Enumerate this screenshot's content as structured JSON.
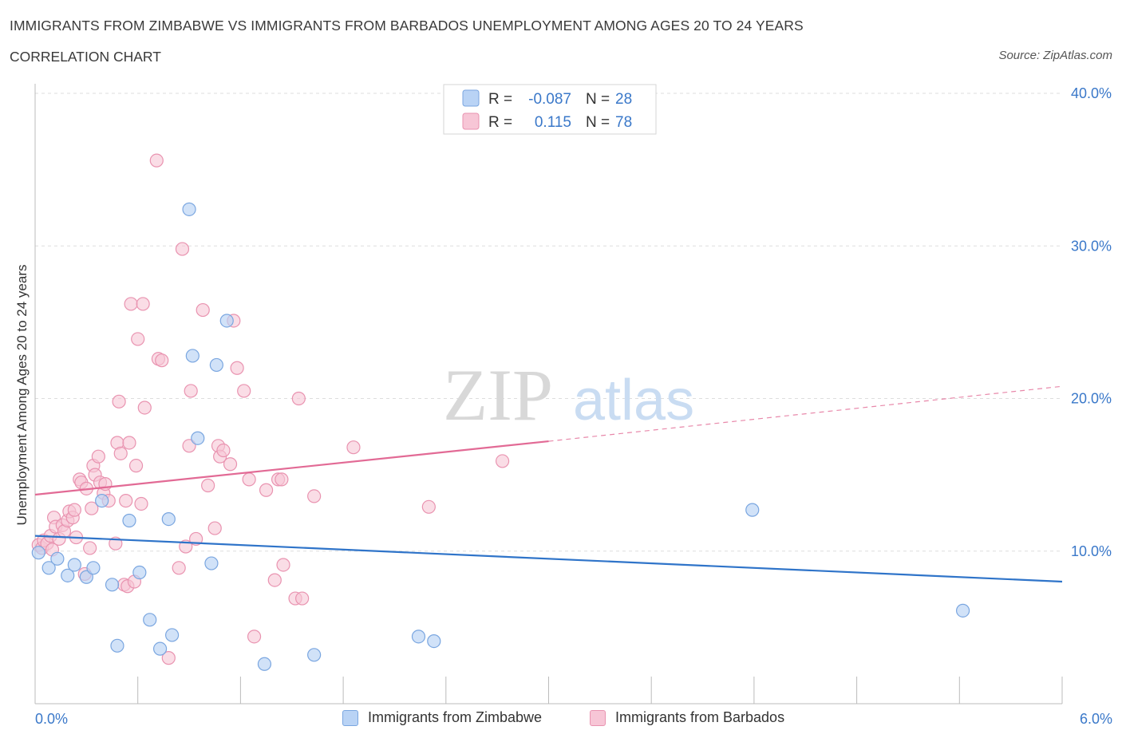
{
  "header": {
    "title": "IMMIGRANTS FROM ZIMBABWE VS IMMIGRANTS FROM BARBADOS UNEMPLOYMENT AMONG AGES 20 TO 24 YEARS",
    "subtitle": "CORRELATION CHART",
    "source": "Source: ZipAtlas.com"
  },
  "watermark": {
    "zip": "ZIP",
    "atlas": "atlas"
  },
  "stats": {
    "zimbabwe": {
      "r_label": "R =",
      "r_value": "-0.087",
      "n_label": "N =",
      "n_value": "28"
    },
    "barbados": {
      "r_label": "R =",
      "r_value": "0.115",
      "n_label": "N =",
      "n_value": "78"
    }
  },
  "colors": {
    "zimbabwe_fill": "#b9d3f5",
    "zimbabwe_stroke": "#7aa6e0",
    "zimbabwe_line": "#2f74c9",
    "barbados_fill": "#f7c6d6",
    "barbados_stroke": "#e993b0",
    "barbados_line": "#e26a95",
    "value_text": "#3a78c9"
  },
  "chart_data": {
    "type": "scatter",
    "xlabel": "",
    "ylabel": "Unemployment Among Ages 20 to 24 years",
    "xlim": [
      0,
      6
    ],
    "ylim": [
      0,
      40
    ],
    "x_tick_labels": [
      "0.0%",
      "6.0%"
    ],
    "y_tick_labels": [
      "10.0%",
      "20.0%",
      "30.0%",
      "40.0%"
    ],
    "y_ticks": [
      10,
      20,
      30,
      40
    ],
    "grid": true,
    "legend_position": "top-center",
    "series": [
      {
        "name": "Immigrants from Zimbabwe",
        "trend": {
          "x": [
            0,
            6
          ],
          "y": [
            11.0,
            8.0
          ]
        },
        "points": [
          [
            0.02,
            9.9
          ],
          [
            0.08,
            8.9
          ],
          [
            0.13,
            9.5
          ],
          [
            0.19,
            8.4
          ],
          [
            0.23,
            9.1
          ],
          [
            0.3,
            8.3
          ],
          [
            0.34,
            8.9
          ],
          [
            0.39,
            13.3
          ],
          [
            0.45,
            7.8
          ],
          [
            0.48,
            3.8
          ],
          [
            0.55,
            12.0
          ],
          [
            0.61,
            8.6
          ],
          [
            0.67,
            5.5
          ],
          [
            0.73,
            3.6
          ],
          [
            0.78,
            12.1
          ],
          [
            0.8,
            4.5
          ],
          [
            0.9,
            32.4
          ],
          [
            0.92,
            22.8
          ],
          [
            0.95,
            17.4
          ],
          [
            1.03,
            9.2
          ],
          [
            1.06,
            22.2
          ],
          [
            1.12,
            25.1
          ],
          [
            1.34,
            2.6
          ],
          [
            1.63,
            3.2
          ],
          [
            2.24,
            4.4
          ],
          [
            2.33,
            4.1
          ],
          [
            4.19,
            12.7
          ],
          [
            5.42,
            6.1
          ]
        ]
      },
      {
        "name": "Immigrants from Barbados",
        "trend": {
          "x": [
            0,
            3.0
          ],
          "y": [
            13.7,
            17.2
          ]
        },
        "trend_dashed": {
          "x": [
            3.0,
            6.0
          ],
          "y": [
            17.2,
            20.8
          ]
        },
        "points": [
          [
            0.02,
            10.4
          ],
          [
            0.04,
            10.2
          ],
          [
            0.05,
            10.7
          ],
          [
            0.07,
            10.5
          ],
          [
            0.09,
            11.0
          ],
          [
            0.1,
            10.1
          ],
          [
            0.11,
            12.2
          ],
          [
            0.12,
            11.6
          ],
          [
            0.14,
            10.8
          ],
          [
            0.16,
            11.7
          ],
          [
            0.17,
            11.3
          ],
          [
            0.19,
            12.0
          ],
          [
            0.2,
            12.6
          ],
          [
            0.22,
            12.2
          ],
          [
            0.23,
            12.7
          ],
          [
            0.24,
            10.9
          ],
          [
            0.26,
            14.7
          ],
          [
            0.27,
            14.5
          ],
          [
            0.29,
            8.5
          ],
          [
            0.3,
            14.1
          ],
          [
            0.32,
            10.2
          ],
          [
            0.33,
            12.8
          ],
          [
            0.34,
            15.6
          ],
          [
            0.35,
            15.0
          ],
          [
            0.37,
            16.2
          ],
          [
            0.38,
            14.5
          ],
          [
            0.4,
            13.8
          ],
          [
            0.41,
            14.4
          ],
          [
            0.43,
            13.3
          ],
          [
            0.47,
            10.5
          ],
          [
            0.48,
            17.1
          ],
          [
            0.49,
            19.8
          ],
          [
            0.5,
            16.4
          ],
          [
            0.52,
            7.8
          ],
          [
            0.53,
            13.3
          ],
          [
            0.54,
            7.7
          ],
          [
            0.55,
            17.1
          ],
          [
            0.56,
            26.2
          ],
          [
            0.58,
            8.0
          ],
          [
            0.59,
            15.6
          ],
          [
            0.6,
            23.9
          ],
          [
            0.62,
            13.1
          ],
          [
            0.63,
            26.2
          ],
          [
            0.64,
            19.4
          ],
          [
            0.71,
            35.6
          ],
          [
            0.72,
            22.6
          ],
          [
            0.74,
            22.5
          ],
          [
            0.78,
            3.0
          ],
          [
            0.84,
            8.9
          ],
          [
            0.86,
            29.8
          ],
          [
            0.88,
            10.3
          ],
          [
            0.9,
            16.9
          ],
          [
            0.91,
            20.5
          ],
          [
            0.94,
            10.8
          ],
          [
            0.98,
            25.8
          ],
          [
            1.01,
            14.3
          ],
          [
            1.05,
            11.5
          ],
          [
            1.07,
            16.9
          ],
          [
            1.08,
            16.2
          ],
          [
            1.1,
            16.6
          ],
          [
            1.14,
            15.7
          ],
          [
            1.16,
            25.1
          ],
          [
            1.18,
            22.0
          ],
          [
            1.22,
            20.5
          ],
          [
            1.25,
            14.7
          ],
          [
            1.28,
            4.4
          ],
          [
            1.35,
            14.0
          ],
          [
            1.4,
            8.1
          ],
          [
            1.42,
            14.7
          ],
          [
            1.44,
            14.7
          ],
          [
            1.45,
            9.1
          ],
          [
            1.52,
            6.9
          ],
          [
            1.54,
            20.0
          ],
          [
            1.56,
            6.9
          ],
          [
            1.63,
            13.6
          ],
          [
            1.86,
            16.8
          ],
          [
            2.3,
            12.9
          ],
          [
            2.73,
            15.9
          ]
        ]
      }
    ]
  },
  "legend": {
    "zimbabwe": "Immigrants from Zimbabwe",
    "barbados": "Immigrants from Barbados"
  }
}
